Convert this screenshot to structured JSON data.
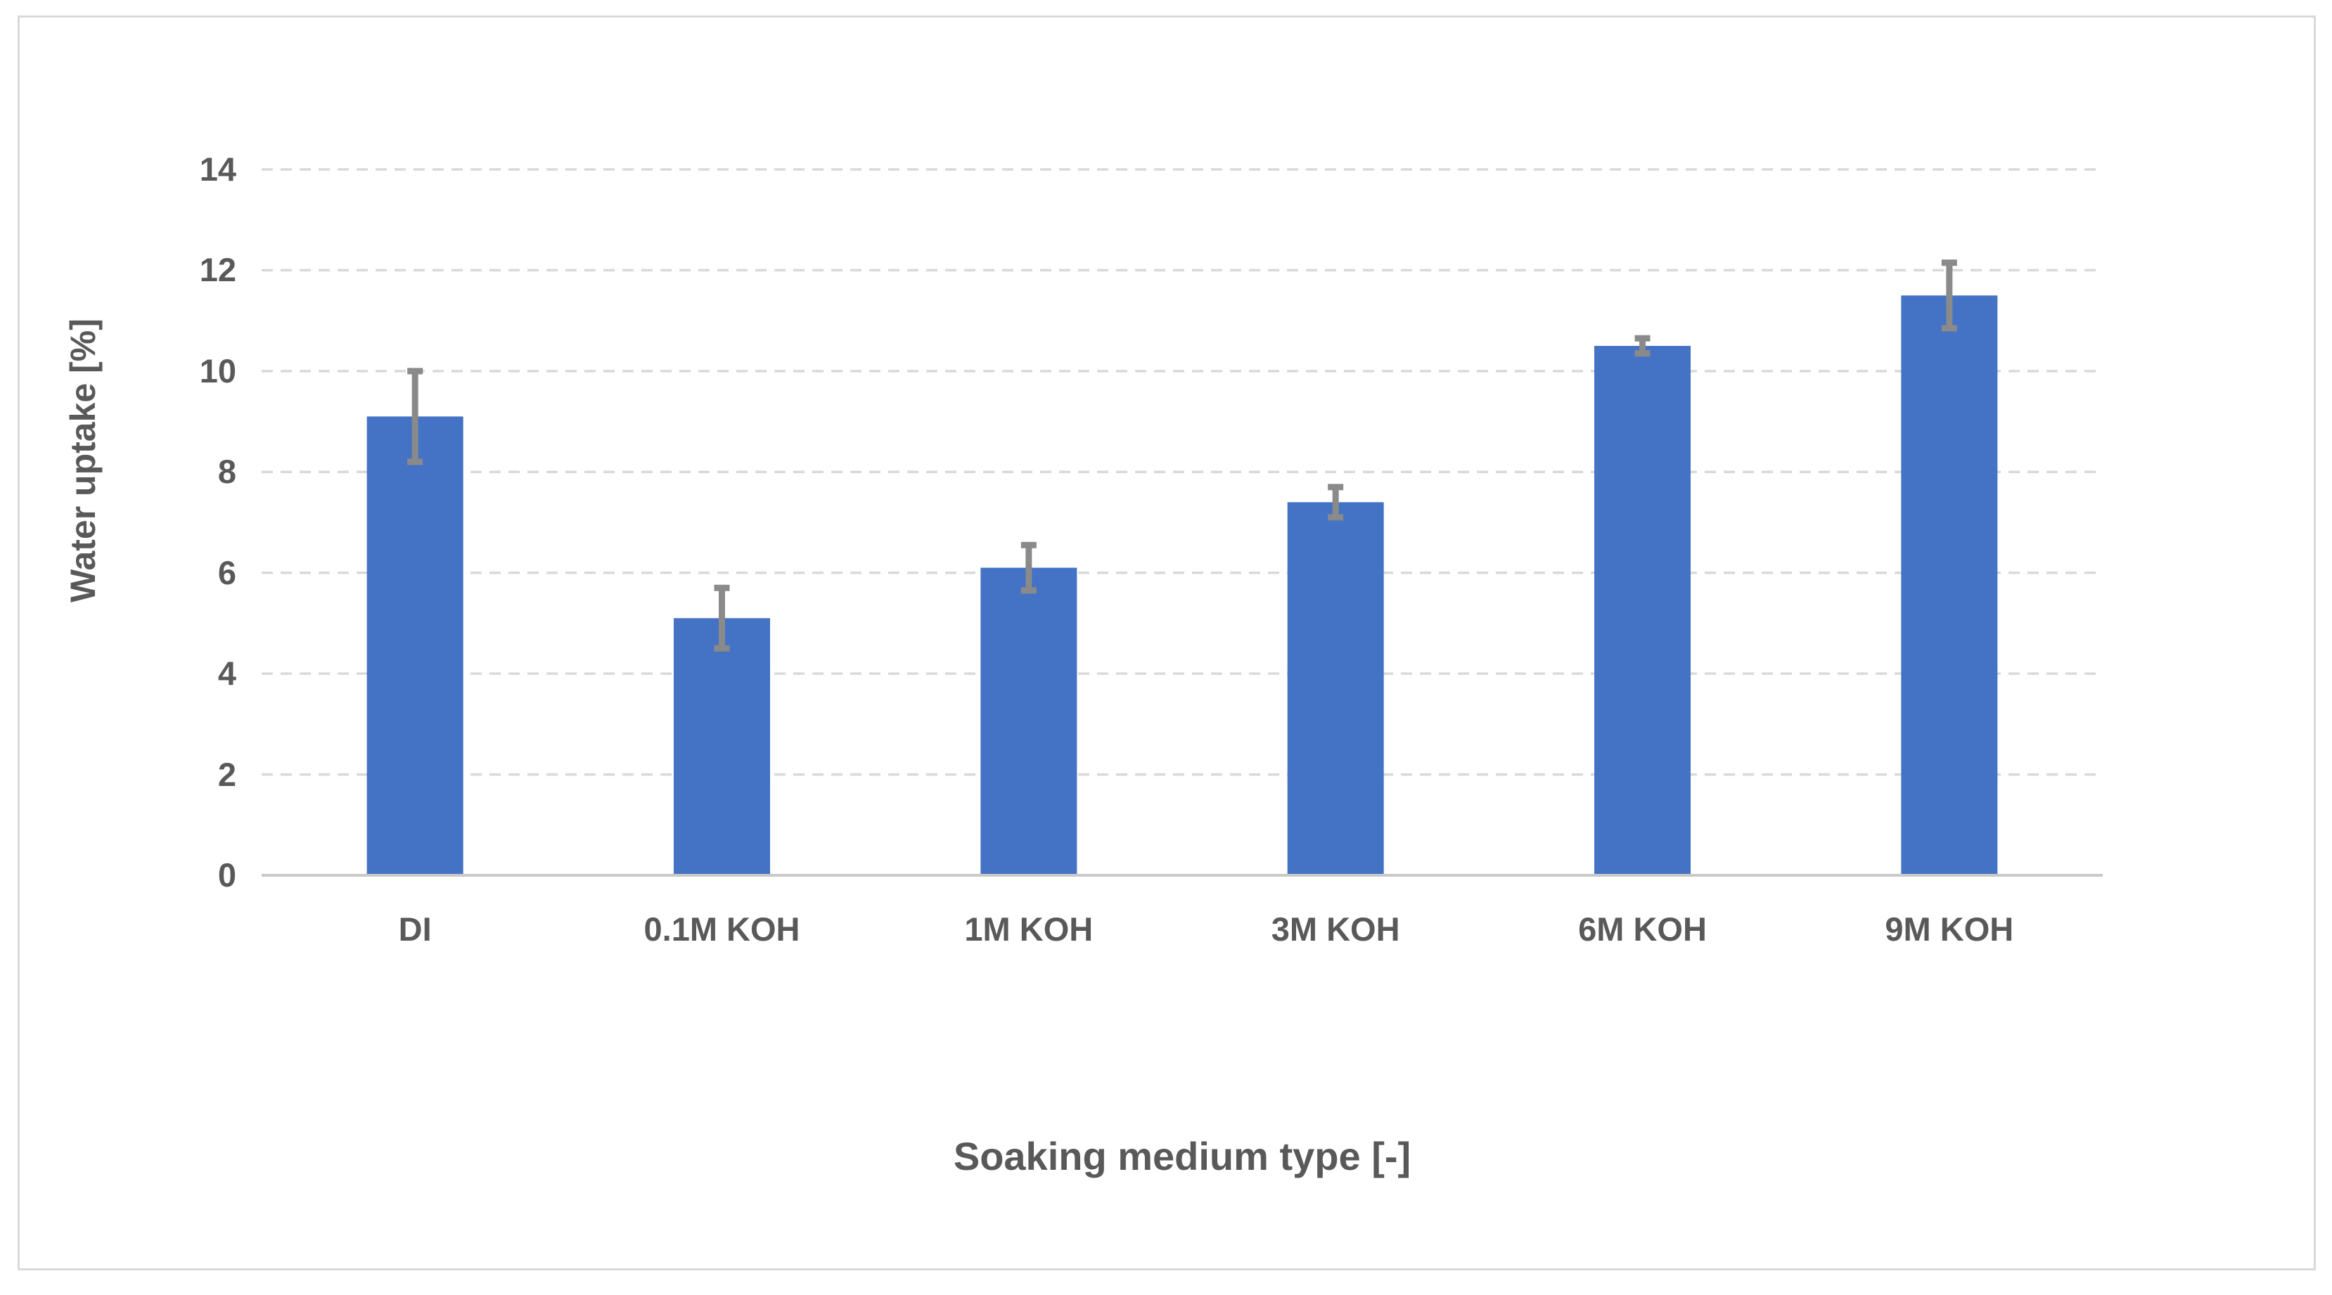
{
  "chart_data": {
    "type": "bar",
    "title": "",
    "xlabel": "Soaking medium type [-]",
    "ylabel": "Water uptake [%]",
    "categories": [
      "DI",
      "0.1M KOH",
      "1M KOH",
      "3M KOH",
      "6M KOH",
      "9M KOH"
    ],
    "values": [
      9.1,
      5.1,
      6.1,
      7.4,
      10.5,
      11.5
    ],
    "errors_plus_minus": [
      0.9,
      0.6,
      0.45,
      0.3,
      0.15,
      0.65
    ],
    "ylim": [
      0,
      14
    ],
    "yticks": [
      0,
      2,
      4,
      6,
      8,
      10,
      12,
      14
    ],
    "ytick_labels": [
      "0",
      "2",
      "4",
      "6",
      "8",
      "10",
      "12",
      "14"
    ],
    "grid": "horizontal-dashed",
    "legend": "none",
    "colors": {
      "bar_fill": "#4472C4",
      "error_bar": "#8A8A8A",
      "gridline": "#D9D9D9",
      "axis_line": "#C9C9C9",
      "tick_label_text": "#595959",
      "axis_title_text": "#595959",
      "chart_border": "#D9D9D9",
      "background": "#FFFFFF"
    }
  }
}
